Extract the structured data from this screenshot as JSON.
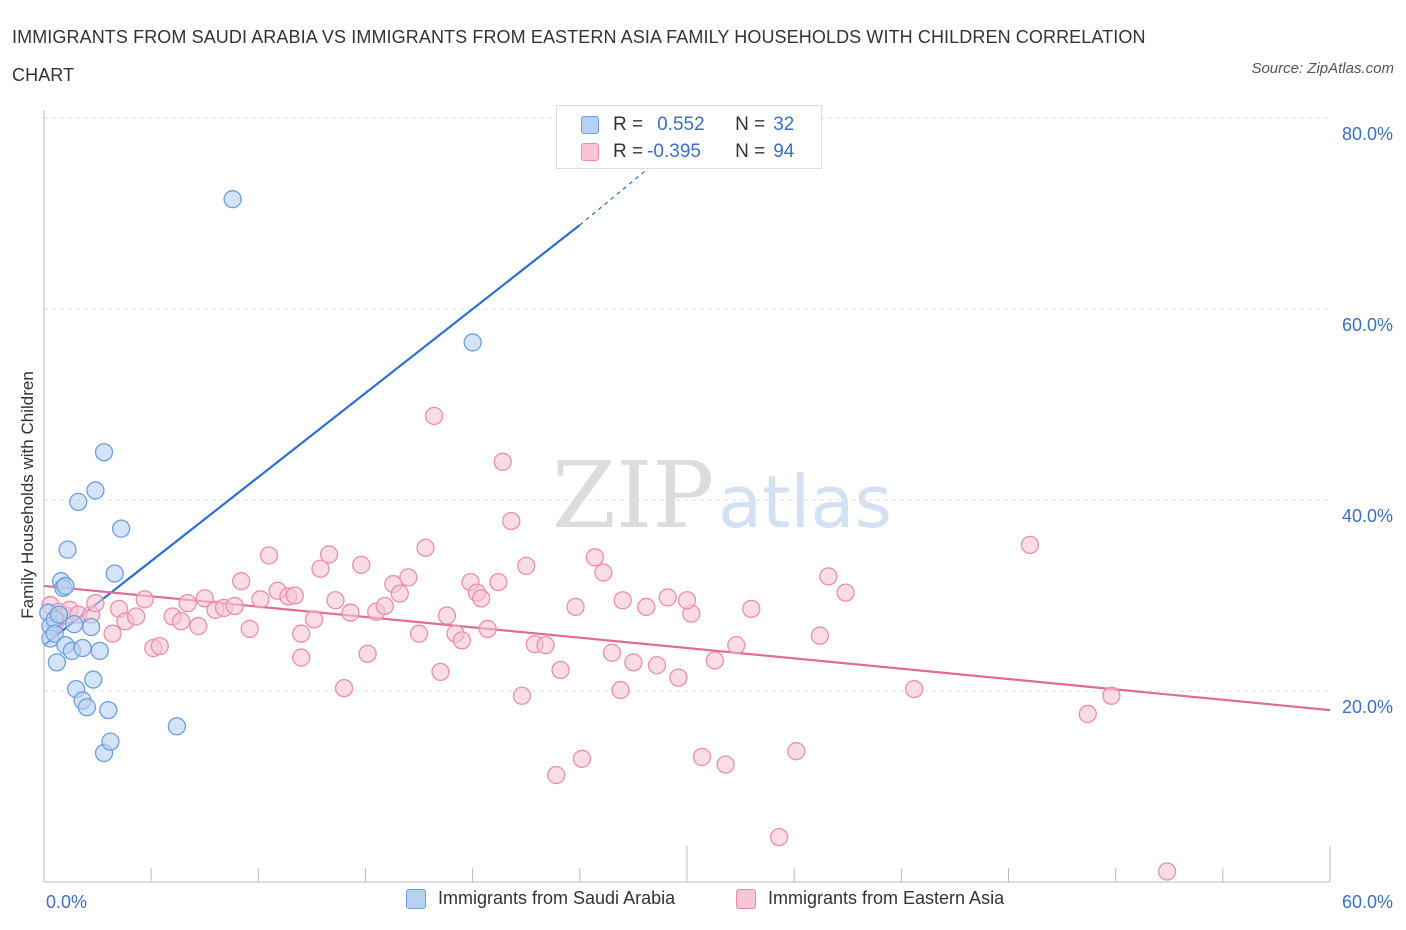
{
  "title": "IMMIGRANTS FROM SAUDI ARABIA VS IMMIGRANTS FROM EASTERN ASIA FAMILY HOUSEHOLDS WITH CHILDREN CORRELATION CHART",
  "source": "Source: ZipAtlas.com",
  "watermark": {
    "zip": "ZIP",
    "atlas": "atlas"
  },
  "legend_top": [
    {
      "r_label": "R =",
      "r_value": "0.552",
      "n_label": "N =",
      "n_value": "32"
    },
    {
      "r_label": "R =",
      "r_value": "-0.395",
      "n_label": "N =",
      "n_value": "94"
    }
  ],
  "colors": {
    "blue_fill": "#b8d1f3",
    "blue_stroke": "#6c9fe0",
    "blue_line": "#2a6fd1",
    "pink_fill": "#f7c5d4",
    "pink_stroke": "#ec8eab",
    "pink_line": "#e06c95",
    "axis_label": "#3b6fc4",
    "grid": "#dddddd"
  },
  "chart_data": {
    "type": "scatter",
    "title": "IMMIGRANTS FROM SAUDI ARABIA VS IMMIGRANTS FROM EASTERN ASIA FAMILY HOUSEHOLDS WITH CHILDREN CORRELATION CHART",
    "xlabel": "",
    "ylabel": "Family Households with Children",
    "xlim": [
      0,
      60
    ],
    "ylim": [
      0,
      80
    ],
    "x_tick_labels": [
      "0.0%",
      "60.0%"
    ],
    "y_ticks": [
      20,
      40,
      60,
      80
    ],
    "y_tick_labels": [
      "20.0%",
      "40.0%",
      "60.0%",
      "80.0%"
    ],
    "grid": "horizontal dashed",
    "legend_position": "bottom-center",
    "series": [
      {
        "name": "Immigrants from Saudi Arabia",
        "color": "blue",
        "trend": {
          "x0": 0.0,
          "y0": 24.8,
          "x1": 25.0,
          "y1": 68.8,
          "dash_to_x": 28.5,
          "dash_to_y": 75.3
        },
        "points": [
          [
            0.2,
            28.2
          ],
          [
            0.3,
            26.8
          ],
          [
            0.3,
            25.5
          ],
          [
            0.5,
            27.5
          ],
          [
            0.5,
            26.0
          ],
          [
            0.6,
            23.0
          ],
          [
            0.7,
            28.0
          ],
          [
            0.8,
            31.5
          ],
          [
            0.9,
            30.8
          ],
          [
            1.0,
            31.0
          ],
          [
            1.0,
            24.8
          ],
          [
            1.1,
            34.8
          ],
          [
            1.3,
            24.2
          ],
          [
            1.4,
            27.0
          ],
          [
            1.5,
            20.2
          ],
          [
            1.6,
            39.8
          ],
          [
            1.8,
            24.5
          ],
          [
            1.8,
            19.0
          ],
          [
            2.0,
            18.3
          ],
          [
            2.2,
            26.7
          ],
          [
            2.3,
            21.2
          ],
          [
            2.4,
            41.0
          ],
          [
            2.6,
            24.2
          ],
          [
            2.8,
            45.0
          ],
          [
            2.8,
            13.5
          ],
          [
            3.0,
            18.0
          ],
          [
            3.1,
            14.7
          ],
          [
            3.3,
            32.3
          ],
          [
            3.6,
            37.0
          ],
          [
            6.2,
            16.3
          ],
          [
            8.8,
            71.5
          ],
          [
            20.0,
            56.5
          ]
        ]
      },
      {
        "name": "Immigrants from Eastern Asia",
        "color": "pink",
        "trend": {
          "x0": 0.0,
          "y0": 31.0,
          "x1": 60.0,
          "y1": 18.0
        },
        "points": [
          [
            0.3,
            29.0
          ],
          [
            0.5,
            27.0
          ],
          [
            0.7,
            28.3
          ],
          [
            1.0,
            27.9
          ],
          [
            1.2,
            28.5
          ],
          [
            1.6,
            28.0
          ],
          [
            2.2,
            28.0
          ],
          [
            2.4,
            29.2
          ],
          [
            3.2,
            26.0
          ],
          [
            3.5,
            28.6
          ],
          [
            3.8,
            27.3
          ],
          [
            4.3,
            27.8
          ],
          [
            4.7,
            29.6
          ],
          [
            5.1,
            24.5
          ],
          [
            5.4,
            24.7
          ],
          [
            6.0,
            27.8
          ],
          [
            6.4,
            27.3
          ],
          [
            6.7,
            29.2
          ],
          [
            7.2,
            26.8
          ],
          [
            7.5,
            29.7
          ],
          [
            8.0,
            28.5
          ],
          [
            8.4,
            28.7
          ],
          [
            8.9,
            28.9
          ],
          [
            9.2,
            31.5
          ],
          [
            9.6,
            26.5
          ],
          [
            10.1,
            29.6
          ],
          [
            10.5,
            34.2
          ],
          [
            10.9,
            30.5
          ],
          [
            11.4,
            29.9
          ],
          [
            11.7,
            30.0
          ],
          [
            12.0,
            23.5
          ],
          [
            12.6,
            27.5
          ],
          [
            12.9,
            32.8
          ],
          [
            13.3,
            34.3
          ],
          [
            13.6,
            29.5
          ],
          [
            14.0,
            20.3
          ],
          [
            14.3,
            28.2
          ],
          [
            14.8,
            33.2
          ],
          [
            15.1,
            23.9
          ],
          [
            15.5,
            28.3
          ],
          [
            15.9,
            28.9
          ],
          [
            16.3,
            31.2
          ],
          [
            16.6,
            30.2
          ],
          [
            17.0,
            31.9
          ],
          [
            17.5,
            26.0
          ],
          [
            17.8,
            35.0
          ],
          [
            18.2,
            48.8
          ],
          [
            18.5,
            22.0
          ],
          [
            18.8,
            27.9
          ],
          [
            19.2,
            26.0
          ],
          [
            19.5,
            25.3
          ],
          [
            19.9,
            31.4
          ],
          [
            20.2,
            30.3
          ],
          [
            20.4,
            29.7
          ],
          [
            20.7,
            26.5
          ],
          [
            21.2,
            31.4
          ],
          [
            21.4,
            44.0
          ],
          [
            21.8,
            37.8
          ],
          [
            22.3,
            19.5
          ],
          [
            22.5,
            33.1
          ],
          [
            22.9,
            24.9
          ],
          [
            23.4,
            24.8
          ],
          [
            24.1,
            22.2
          ],
          [
            24.8,
            28.8
          ],
          [
            25.1,
            12.9
          ],
          [
            25.7,
            34.0
          ],
          [
            26.1,
            32.4
          ],
          [
            26.9,
            20.1
          ],
          [
            27.5,
            23.0
          ],
          [
            28.1,
            28.8
          ],
          [
            28.6,
            22.7
          ],
          [
            29.1,
            29.8
          ],
          [
            29.6,
            21.4
          ],
          [
            30.2,
            28.1
          ],
          [
            30.7,
            13.1
          ],
          [
            31.3,
            23.2
          ],
          [
            31.8,
            12.3
          ],
          [
            32.3,
            24.8
          ],
          [
            33.0,
            28.6
          ],
          [
            34.3,
            4.7
          ],
          [
            35.1,
            13.7
          ],
          [
            36.2,
            25.8
          ],
          [
            36.6,
            32.0
          ],
          [
            37.4,
            30.3
          ],
          [
            40.6,
            20.2
          ],
          [
            46.0,
            35.3
          ],
          [
            48.7,
            17.6
          ],
          [
            49.8,
            19.5
          ],
          [
            52.4,
            1.1
          ],
          [
            30.0,
            29.5
          ],
          [
            26.5,
            24.0
          ],
          [
            23.9,
            11.2
          ],
          [
            27.0,
            29.5
          ],
          [
            12.0,
            26.0
          ]
        ]
      }
    ]
  }
}
